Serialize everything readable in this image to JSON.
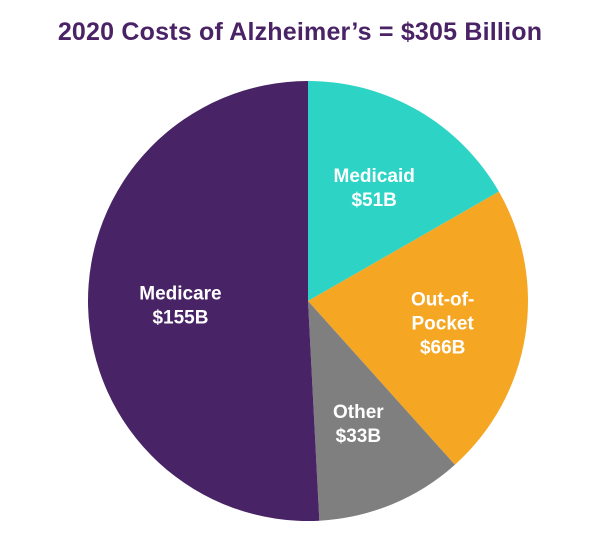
{
  "chart_data": {
    "type": "pie",
    "title": "2020 Costs of Alzheimer’s = $305 Billion",
    "slices": [
      {
        "name": "Medicaid",
        "value": 51,
        "label": "$51B",
        "color": "#2dd4c6",
        "label_lines": [
          "Medicaid",
          "$51B"
        ]
      },
      {
        "name": "Out-of-Pocket",
        "value": 66,
        "label": "$66B",
        "color": "#f5a623",
        "label_lines": [
          "Out-of-",
          "Pocket",
          "$66B"
        ]
      },
      {
        "name": "Other",
        "value": 33,
        "label": "$33B",
        "color": "#7f7f7f",
        "label_lines": [
          "Other",
          "$33B"
        ]
      },
      {
        "name": "Medicare",
        "value": 155,
        "label": "$155B",
        "color": "#482365",
        "label_lines": [
          "Medicare",
          "$155B"
        ]
      }
    ],
    "unit": "Billion USD",
    "total": 305,
    "legend": "none",
    "start": "top",
    "direction": "clockwise"
  }
}
